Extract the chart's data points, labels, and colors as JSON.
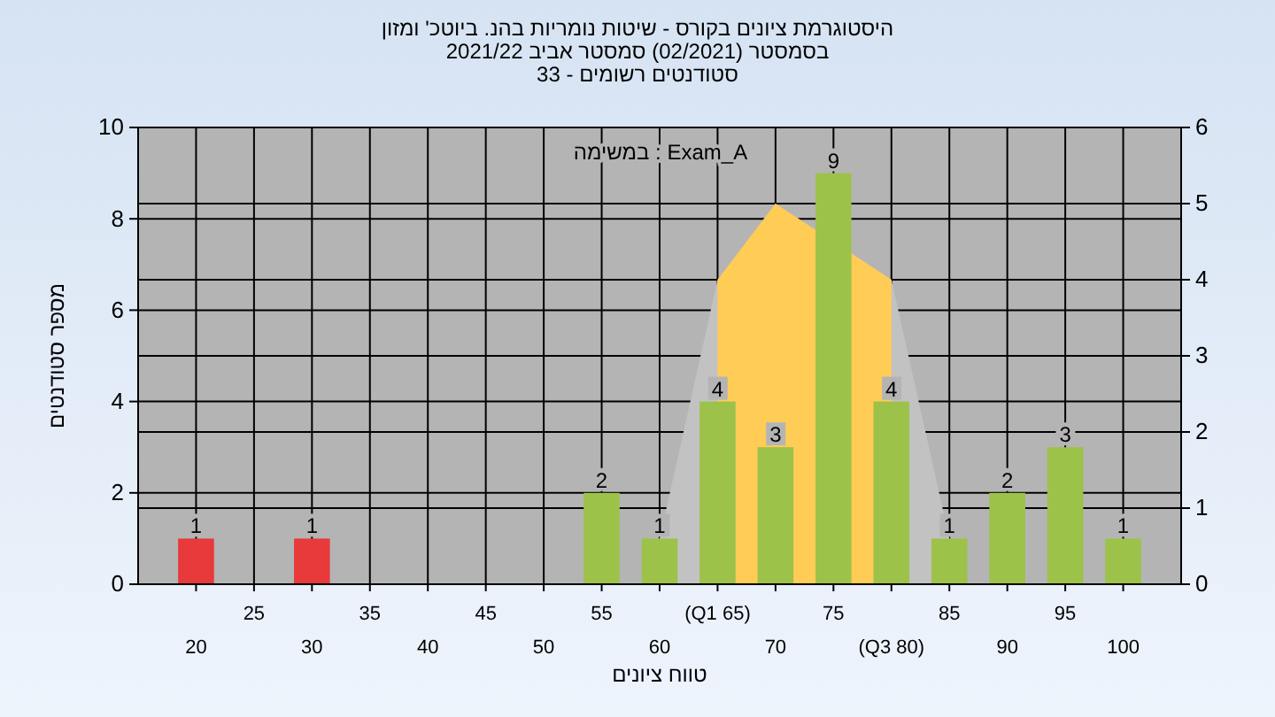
{
  "chart_data": {
    "type": "bar",
    "title": "היסטוגרמת ציונים בקורס - שיטות נומריות בהנ. ביוטכ' ומזון",
    "subtitle": "בסמסטר  (02/2021)  סמסטר אביב 2021/22\nסטודנטים רשומים - 33",
    "xlabel": "טווח ציונים",
    "ylabel": "מספר סטודנטים",
    "annotations": [
      "במשימה : Exam_A"
    ],
    "categories": [
      "20",
      "25",
      "30",
      "35",
      "40",
      "45",
      "50",
      "55",
      "60",
      "(Q1 65)",
      "70",
      "75",
      "(Q3 80)",
      "85",
      "90",
      "95",
      "100"
    ],
    "series": [
      {
        "type": "area",
        "axis": "y2",
        "color": "#c2c2c2",
        "values": [
          null,
          null,
          null,
          null,
          null,
          null,
          null,
          null,
          0.6,
          4,
          5,
          null,
          4,
          0.6,
          null,
          null,
          null
        ]
      },
      {
        "type": "area",
        "axis": "y2",
        "color": "#ffcc55",
        "values": [
          null,
          null,
          null,
          null,
          null,
          null,
          null,
          null,
          null,
          4,
          5,
          null,
          4,
          null,
          null,
          null,
          null
        ]
      },
      {
        "values": [
          1,
          0,
          1,
          0,
          0,
          0,
          0,
          2,
          1,
          4,
          3,
          9,
          4,
          1,
          2,
          3,
          1
        ],
        "colors": [
          "#e83a3a",
          "#9cc24a",
          "#e83a3a",
          "#9cc24a",
          "#9cc24a",
          "#9cc24a",
          "#9cc24a",
          "#9cc24a",
          "#9cc24a",
          "#9cc24a",
          "#9cc24a",
          "#9cc24a",
          "#9cc24a",
          "#9cc24a",
          "#9cc24a",
          "#9cc24a",
          "#9cc24a"
        ],
        "value_labels": [
          "1",
          null,
          "1",
          null,
          null,
          null,
          null,
          "2",
          "1",
          "4",
          "3",
          "9",
          "4",
          "1",
          "2",
          "3",
          "1"
        ]
      }
    ],
    "ylim": [
      0,
      10
    ],
    "yticks": [
      0,
      2,
      4,
      6,
      8,
      10
    ],
    "y2lim": [
      0,
      6
    ],
    "y2ticks": [
      0,
      1,
      2,
      3,
      4,
      5,
      6
    ],
    "grid": true
  }
}
